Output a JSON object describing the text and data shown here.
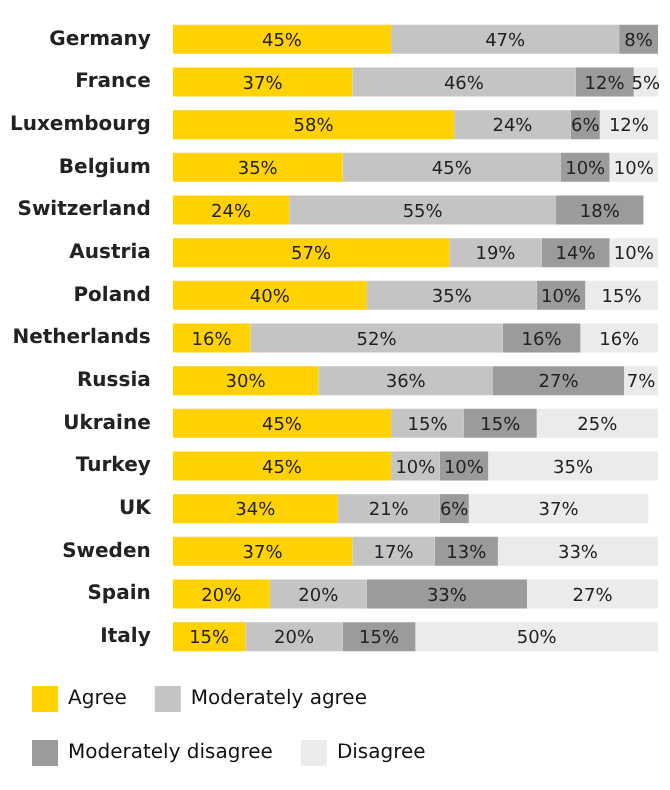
{
  "chart_data": {
    "type": "bar",
    "orientation": "horizontal",
    "stacked": true,
    "categories": [
      "Germany",
      "France",
      "Luxembourg",
      "Belgium",
      "Switzerland",
      "Austria",
      "Poland",
      "Netherlands",
      "Russia",
      "Ukraine",
      "Turkey",
      "UK",
      "Sweden",
      "Spain",
      "Italy"
    ],
    "xlim": [
      0,
      100
    ],
    "legend": "bottom",
    "tick_labels": "y",
    "series": [
      {
        "name": "Agree",
        "color": "#ffd200",
        "values": [
          45,
          37,
          58,
          35,
          24,
          57,
          40,
          16,
          30,
          45,
          45,
          34,
          37,
          20,
          15
        ],
        "value_labels": [
          "45%",
          "37%",
          "58%",
          "35%",
          "24%",
          "57%",
          "40%",
          "16%",
          "30%",
          "45%",
          "45%",
          "34%",
          "37%",
          "20%",
          "15%"
        ]
      },
      {
        "name": "Moderately agree",
        "color": "#c4c4c4",
        "values": [
          47,
          46,
          24,
          45,
          55,
          19,
          35,
          52,
          36,
          15,
          10,
          21,
          17,
          20,
          20
        ],
        "value_labels": [
          "47%",
          "46%",
          "24%",
          "45%",
          "55%",
          "19%",
          "35%",
          "52%",
          "36%",
          "15%",
          "10%",
          "21%",
          "17%",
          "20%",
          "20%"
        ]
      },
      {
        "name": "Moderately disagree",
        "color": "#9b9b9b",
        "values": [
          8,
          12,
          6,
          10,
          18,
          14,
          10,
          16,
          27,
          15,
          10,
          6,
          13,
          33,
          15
        ],
        "value_labels": [
          "8%",
          "12%",
          "6%",
          "10%",
          "18%",
          "14%",
          "10%",
          "16%",
          "27%",
          "15%",
          "10%",
          "6%",
          "13%",
          "33%",
          "15%"
        ]
      },
      {
        "name": "Disagree",
        "color": "#ebebeb",
        "values": [
          null,
          5,
          12,
          10,
          null,
          10,
          15,
          16,
          7,
          25,
          35,
          37,
          33,
          27,
          50
        ],
        "value_labels": [
          null,
          "5%",
          "12%",
          "10%",
          null,
          "10%",
          "15%",
          "16%",
          "7%",
          "25%",
          "35%",
          "37%",
          "33%",
          "27%",
          "50%"
        ]
      }
    ]
  }
}
